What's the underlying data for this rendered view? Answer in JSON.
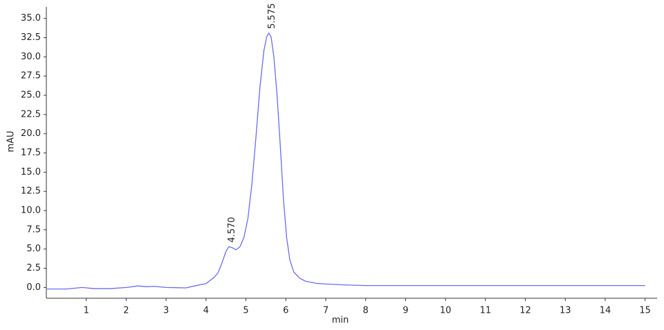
{
  "chart_data": {
    "type": "line",
    "x_label": "min",
    "y_label": "mAU",
    "color": "#6a6af0",
    "x": [
      0,
      0.5,
      0.9,
      1.2,
      1.6,
      2.0,
      2.3,
      2.5,
      2.7,
      3.0,
      3.5,
      3.8,
      4.0,
      4.1,
      4.2,
      4.3,
      4.4,
      4.5,
      4.57,
      4.65,
      4.75,
      4.85,
      4.95,
      5.05,
      5.15,
      5.25,
      5.35,
      5.45,
      5.52,
      5.575,
      5.63,
      5.7,
      5.78,
      5.86,
      5.94,
      6.02,
      6.1,
      6.2,
      6.35,
      6.5,
      6.75,
      7.0,
      7.5,
      8.0,
      10.0,
      12.0,
      15.0
    ],
    "values": [
      -0.2,
      -0.2,
      0.0,
      -0.15,
      -0.15,
      0.0,
      0.2,
      0.1,
      0.15,
      0.0,
      -0.05,
      0.3,
      0.5,
      0.9,
      1.3,
      1.9,
      3.2,
      4.7,
      5.3,
      5.2,
      4.9,
      5.3,
      6.5,
      9.0,
      13.5,
      19.5,
      26.0,
      30.8,
      32.6,
      33.1,
      32.6,
      30.0,
      25.0,
      18.5,
      11.5,
      6.5,
      3.6,
      2.0,
      1.2,
      0.8,
      0.55,
      0.45,
      0.33,
      0.25,
      0.25,
      0.25,
      0.25
    ],
    "annotations": [
      {
        "text": "4.570",
        "x": 4.57,
        "y": 5.3
      },
      {
        "text": "5.575",
        "x": 5.575,
        "y": 33.1
      }
    ],
    "xlim": [
      0,
      15.3
    ],
    "ylim": [
      -1.4,
      36.5
    ],
    "xticks": [
      1,
      2,
      3,
      4,
      5,
      6,
      7,
      8,
      9,
      10,
      11,
      12,
      13,
      14,
      15
    ],
    "yticks": [
      {
        "value": 0,
        "label": "0.0"
      },
      2.5,
      {
        "value": 5,
        "label": "5.0"
      },
      7.5,
      {
        "value": 10,
        "label": "10.0"
      },
      12.5,
      {
        "value": 15,
        "label": "15.0"
      },
      17.5,
      {
        "value": 20,
        "label": "20.0"
      },
      22.5,
      {
        "value": 25,
        "label": "25.0"
      },
      27.5,
      {
        "value": 30,
        "label": "30.0"
      },
      32.5,
      {
        "value": 35,
        "label": "35.0"
      }
    ]
  }
}
